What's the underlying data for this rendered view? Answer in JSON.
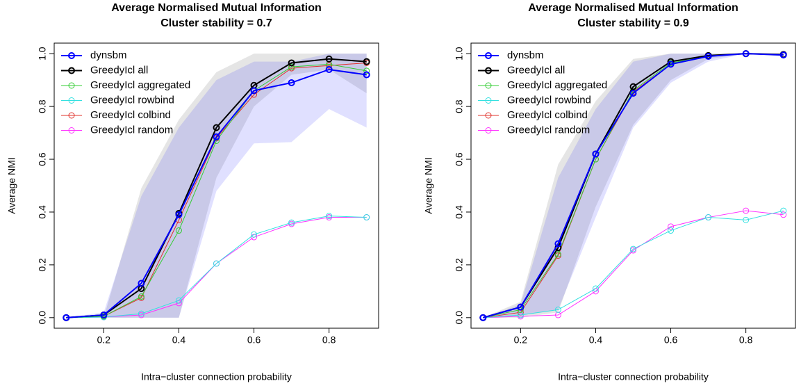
{
  "chart_data": [
    {
      "type": "line",
      "title": "Average Normalised Mutual Information",
      "subtitle": "Cluster stability = 0.7",
      "x_label": "Intra−cluster connection probability",
      "y_label": "Average NMI",
      "x": [
        0.1,
        0.2,
        0.3,
        0.4,
        0.5,
        0.6,
        0.7,
        0.8,
        0.9
      ],
      "xlim": [
        0.068,
        0.932
      ],
      "ylim": [
        -0.04,
        1.04
      ],
      "xticks": [
        0.2,
        0.4,
        0.6,
        0.8
      ],
      "yticks": [
        {
          "value": 0,
          "label": "0.0"
        },
        0.2,
        0.4,
        0.6,
        0.8,
        {
          "value": 1,
          "label": "1.0"
        }
      ],
      "legend": "top-left",
      "bands": [
        {
          "color": "#bebebe",
          "opacity": 0.4,
          "lower": [
            0,
            0,
            0,
            0,
            0.53,
            0.8,
            0.92,
            0.94,
            0.85
          ],
          "upper": [
            0,
            0,
            0.49,
            0.75,
            0.93,
            1.0,
            1.0,
            1.0,
            1.0
          ]
        },
        {
          "color": "#0000ff",
          "opacity": 0.12,
          "lower": [
            0,
            0,
            0,
            0,
            0.48,
            0.66,
            0.665,
            0.79,
            0.72
          ],
          "upper": [
            0,
            0.02,
            0.46,
            0.72,
            0.9,
            0.97,
            0.97,
            1.0,
            1.0
          ]
        }
      ],
      "series": [
        {
          "name": "dynsbm",
          "color": "#0000ff",
          "width": 2,
          "values": [
            0,
            0.01,
            0.13,
            0.39,
            0.685,
            0.86,
            0.89,
            0.94,
            0.92
          ]
        },
        {
          "name": "GreedyIcl all",
          "color": "#000000",
          "width": 2,
          "values": [
            0,
            0.01,
            0.11,
            0.395,
            0.72,
            0.88,
            0.965,
            0.98,
            0.97
          ]
        },
        {
          "name": "GreedyIcl aggregated",
          "color": "#33cc33",
          "width": 1,
          "values": [
            0,
            0.005,
            0.08,
            0.33,
            0.67,
            0.86,
            0.95,
            0.96,
            0.935
          ]
        },
        {
          "name": "GreedyIcl rowbind",
          "color": "#33e0e0",
          "width": 1,
          "values": [
            0,
            0.002,
            0.015,
            0.065,
            0.205,
            0.315,
            0.36,
            0.385,
            0.38
          ]
        },
        {
          "name": "GreedyIcl colbind",
          "color": "#e0302a",
          "width": 1,
          "values": [
            0,
            0.005,
            0.075,
            0.37,
            0.68,
            0.845,
            0.945,
            0.955,
            0.965
          ]
        },
        {
          "name": "GreedyIcl random",
          "color": "#ff33ff",
          "width": 1,
          "values": [
            0,
            0.002,
            0.01,
            0.055,
            0.205,
            0.305,
            0.355,
            0.38,
            0.38
          ]
        }
      ]
    },
    {
      "type": "line",
      "title": "Average Normalised Mutual Information",
      "subtitle": "Cluster stability = 0.9",
      "x_label": "Intra−cluster connection probability",
      "y_label": "Average NMI",
      "x": [
        0.1,
        0.2,
        0.3,
        0.4,
        0.5,
        0.6,
        0.7,
        0.8,
        0.9
      ],
      "xlim": [
        0.068,
        0.932
      ],
      "ylim": [
        -0.04,
        1.04
      ],
      "xticks": [
        0.2,
        0.4,
        0.6,
        0.8
      ],
      "yticks": [
        {
          "value": 0,
          "label": "0.0"
        },
        0.2,
        0.4,
        0.6,
        0.8,
        {
          "value": 1,
          "label": "1.0"
        }
      ],
      "legend": "top-left",
      "bands": [
        {
          "color": "#bebebe",
          "opacity": 0.4,
          "lower": [
            0,
            0,
            0.02,
            0.42,
            0.73,
            0.9,
            0.98,
            1.0,
            0.99
          ],
          "upper": [
            0,
            0.06,
            0.58,
            0.82,
            0.98,
            1.0,
            1.0,
            1.0,
            1.0
          ]
        },
        {
          "color": "#0000ff",
          "opacity": 0.12,
          "lower": [
            0,
            0.01,
            0.03,
            0.38,
            0.72,
            0.89,
            0.97,
            1.0,
            0.99
          ],
          "upper": [
            0,
            0.05,
            0.53,
            0.79,
            0.97,
            1.0,
            1.0,
            1.0,
            1.0
          ]
        }
      ],
      "series": [
        {
          "name": "dynsbm",
          "color": "#0000ff",
          "width": 2,
          "values": [
            0,
            0.04,
            0.28,
            0.62,
            0.85,
            0.96,
            0.99,
            1.0,
            0.995
          ]
        },
        {
          "name": "GreedyIcl all",
          "color": "#000000",
          "width": 2,
          "values": [
            0,
            0.04,
            0.265,
            0.62,
            0.875,
            0.97,
            0.993,
            1.0,
            0.997
          ]
        },
        {
          "name": "GreedyIcl aggregated",
          "color": "#33cc33",
          "width": 1,
          "values": [
            0,
            0.03,
            0.24,
            0.6,
            0.86,
            0.965,
            0.99,
            1.0,
            0.995
          ]
        },
        {
          "name": "GreedyIcl rowbind",
          "color": "#33e0e0",
          "width": 1,
          "values": [
            0,
            0.01,
            0.03,
            0.11,
            0.26,
            0.33,
            0.38,
            0.37,
            0.405
          ]
        },
        {
          "name": "GreedyIcl colbind",
          "color": "#e0302a",
          "width": 1,
          "values": [
            0,
            0.02,
            0.235,
            0.6,
            0.855,
            0.96,
            0.99,
            1.0,
            0.995
          ]
        },
        {
          "name": "GreedyIcl random",
          "color": "#ff33ff",
          "width": 1,
          "values": [
            0,
            0.005,
            0.01,
            0.1,
            0.255,
            0.345,
            0.38,
            0.405,
            0.39
          ]
        }
      ]
    }
  ]
}
